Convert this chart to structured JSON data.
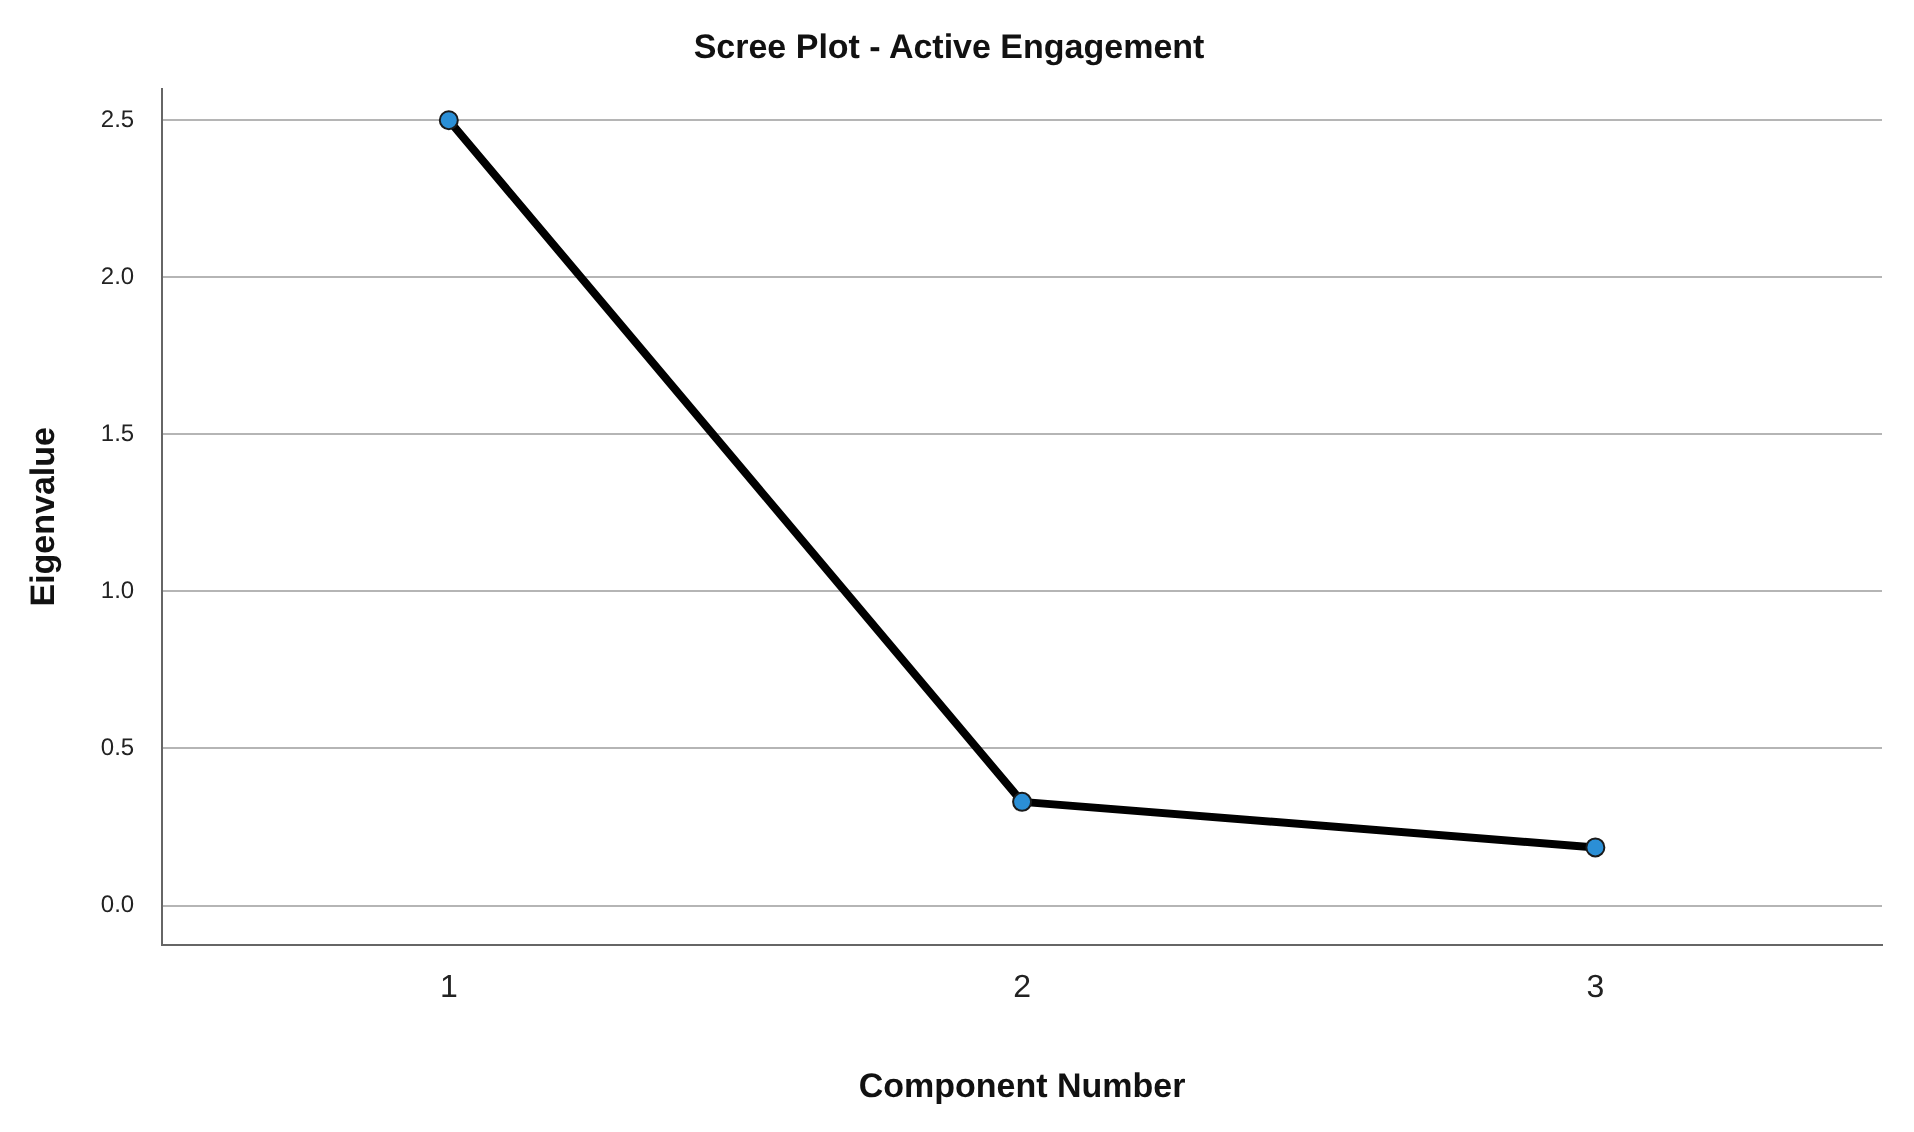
{
  "chart_data": {
    "type": "line",
    "title": "Scree Plot - Active Engagement",
    "xlabel": "Component Number",
    "ylabel": "Eigenvalue",
    "categories": [
      "1",
      "2",
      "3"
    ],
    "series": [
      {
        "color": "#000000",
        "values": [
          2.5,
          0.33,
          0.185
        ]
      }
    ],
    "ylim": [
      -0.125,
      2.6
    ],
    "yticks": [
      {
        "value": 0,
        "label": "0.0"
      },
      {
        "value": 0.5,
        "label": "0.5"
      },
      {
        "value": 1,
        "label": "1.0"
      },
      {
        "value": 1.5,
        "label": "1.5"
      },
      {
        "value": 2,
        "label": "2.0"
      },
      {
        "value": 2.5,
        "label": "2.5"
      }
    ],
    "grid": "y",
    "marker": "circle",
    "line_style": "solid",
    "legend": false
  }
}
